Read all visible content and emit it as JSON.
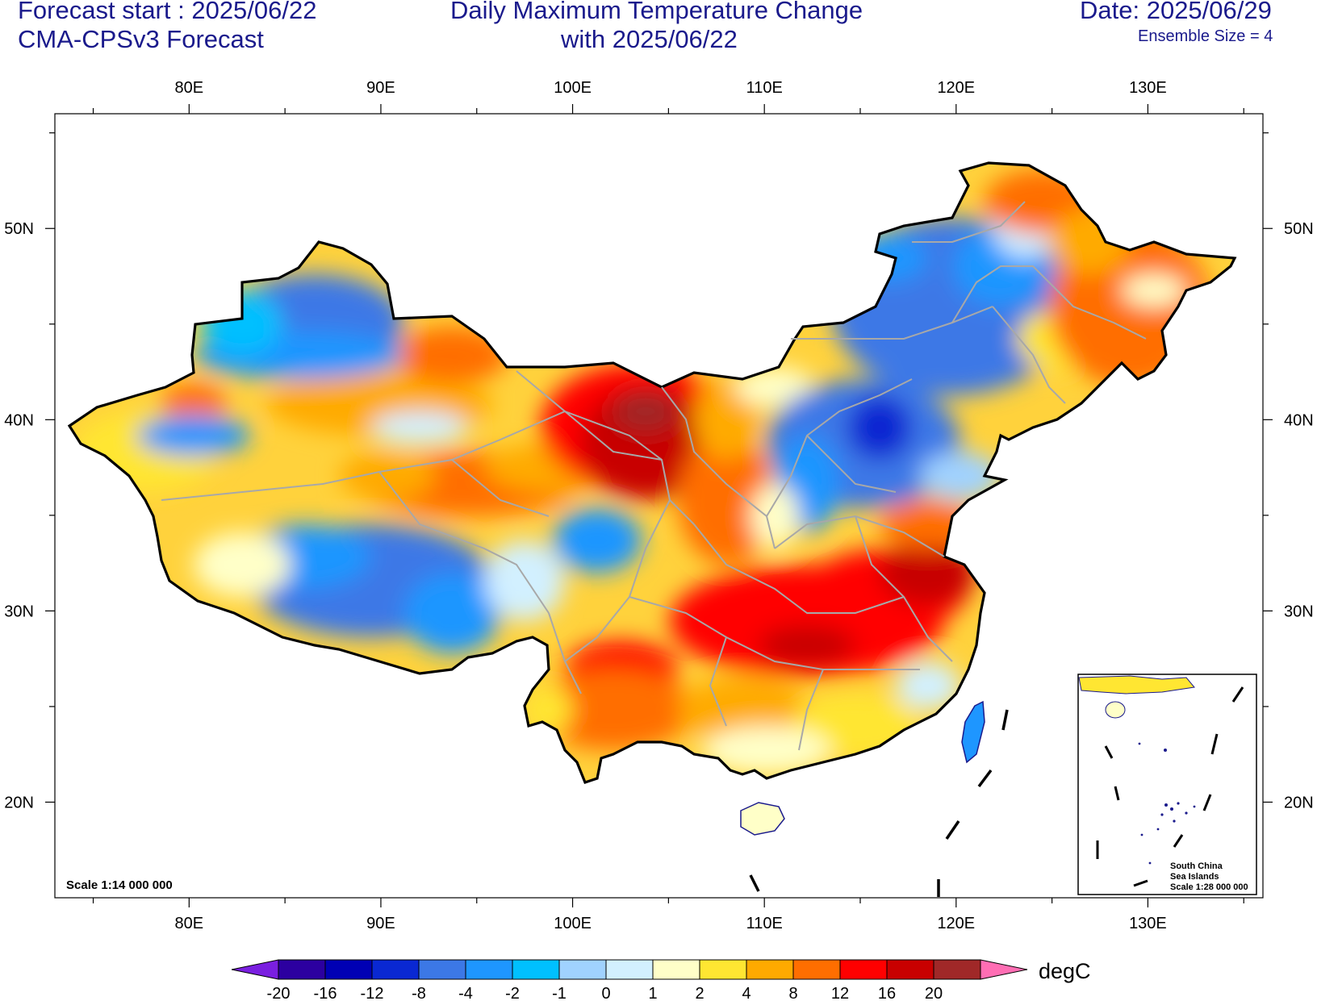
{
  "header": {
    "forecast_start": "Forecast start : 2025/06/22",
    "model": "CMA-CPSv3 Forecast",
    "title_line1": "Daily Maximum Temperature Change",
    "title_line2": "with 2025/06/22",
    "date": "Date: 2025/06/29",
    "ensemble": "Ensemble Size = 4"
  },
  "map": {
    "lon_ticks": [
      "80E",
      "90E",
      "100E",
      "110E",
      "120E",
      "130E"
    ],
    "lat_ticks": [
      "50N",
      "40N",
      "30N",
      "20N"
    ],
    "lon_range": [
      73,
      136
    ],
    "lat_range": [
      15,
      56
    ],
    "scale_text": "Scale 1:14 000 000",
    "inset": {
      "label_line1": "South China",
      "label_line2": "Sea Islands",
      "label_line3": "Scale 1:28 000 000"
    }
  },
  "colorbar": {
    "unit": "degC",
    "levels": [
      "-20",
      "-16",
      "-12",
      "-8",
      "-4",
      "-2",
      "-1",
      "0",
      "1",
      "2",
      "4",
      "8",
      "12",
      "16",
      "20"
    ],
    "colors": [
      "#2c00a0",
      "#0000b4",
      "#0a28d2",
      "#3c78e6",
      "#1e96ff",
      "#00c0ff",
      "#a0d2ff",
      "#d2f0ff",
      "#ffffc8",
      "#ffe632",
      "#ffaa00",
      "#ff6e00",
      "#ff0000",
      "#c80000",
      "#a02828"
    ],
    "under_color": "#7a1fe0",
    "over_color": "#ff6eb4"
  }
}
